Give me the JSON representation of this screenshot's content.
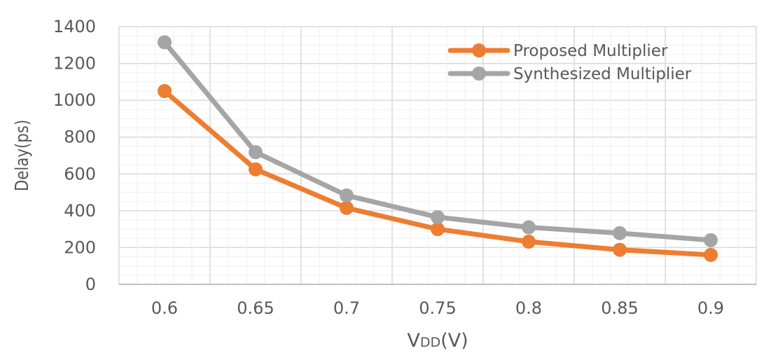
{
  "chart_data": {
    "type": "line",
    "x": [
      0.6,
      0.65,
      0.7,
      0.75,
      0.8,
      0.85,
      0.9
    ],
    "x_tick_labels": [
      "0.6",
      "0.65",
      "0.7",
      "0.75",
      "0.8",
      "0.85",
      "0.9"
    ],
    "y_tick_labels": [
      "0",
      "200",
      "400",
      "600",
      "800",
      "1000",
      "1200",
      "1400"
    ],
    "ylim": [
      0,
      1400
    ],
    "ylabel": "Delay(ps)",
    "xlabel": "VDD(V)",
    "xlabel_parts": {
      "main": "V",
      "sub": "DD",
      "rest": "(V)"
    },
    "grid": true,
    "legend_position": "top-right",
    "series": [
      {
        "name": "Proposed Multiplier",
        "color": "#ED7D31",
        "values": [
          1050,
          625,
          415,
          300,
          232,
          188,
          160
        ]
      },
      {
        "name": "Synthesized Multiplier",
        "color": "#A5A5A5",
        "values": [
          1315,
          718,
          483,
          365,
          310,
          278,
          240
        ]
      }
    ]
  }
}
